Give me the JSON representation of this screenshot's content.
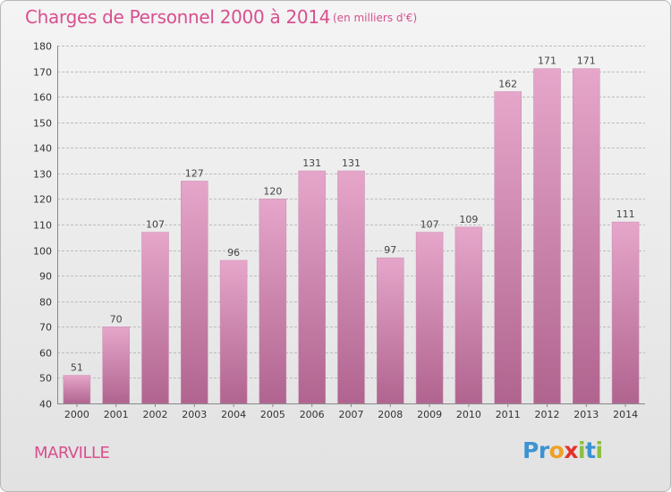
{
  "header": {
    "title": "Charges de Personnel 2000 à 2014",
    "subtitle": "(en milliers d'€)"
  },
  "footer": {
    "commune": "MARVILLE",
    "logo_text": "Proxiti"
  },
  "colors": {
    "title": "#d94f8f",
    "bar_top": "#e6a6ca",
    "bar_bottom": "#b0648f"
  },
  "chart_data": {
    "type": "bar",
    "title": "Charges de Personnel 2000 à 2014",
    "subtitle": "(en milliers d'€)",
    "categories": [
      "2000",
      "2001",
      "2002",
      "2003",
      "2004",
      "2005",
      "2006",
      "2007",
      "2008",
      "2009",
      "2010",
      "2011",
      "2012",
      "2013",
      "2014"
    ],
    "values": [
      51,
      70,
      107,
      127,
      96,
      120,
      131,
      131,
      97,
      107,
      109,
      162,
      171,
      171,
      111
    ],
    "ylim": [
      40,
      180
    ],
    "yticks": [
      40,
      50,
      60,
      70,
      80,
      90,
      100,
      110,
      120,
      130,
      140,
      150,
      160,
      170,
      180
    ],
    "grid": true,
    "xlabel": "",
    "ylabel": ""
  }
}
